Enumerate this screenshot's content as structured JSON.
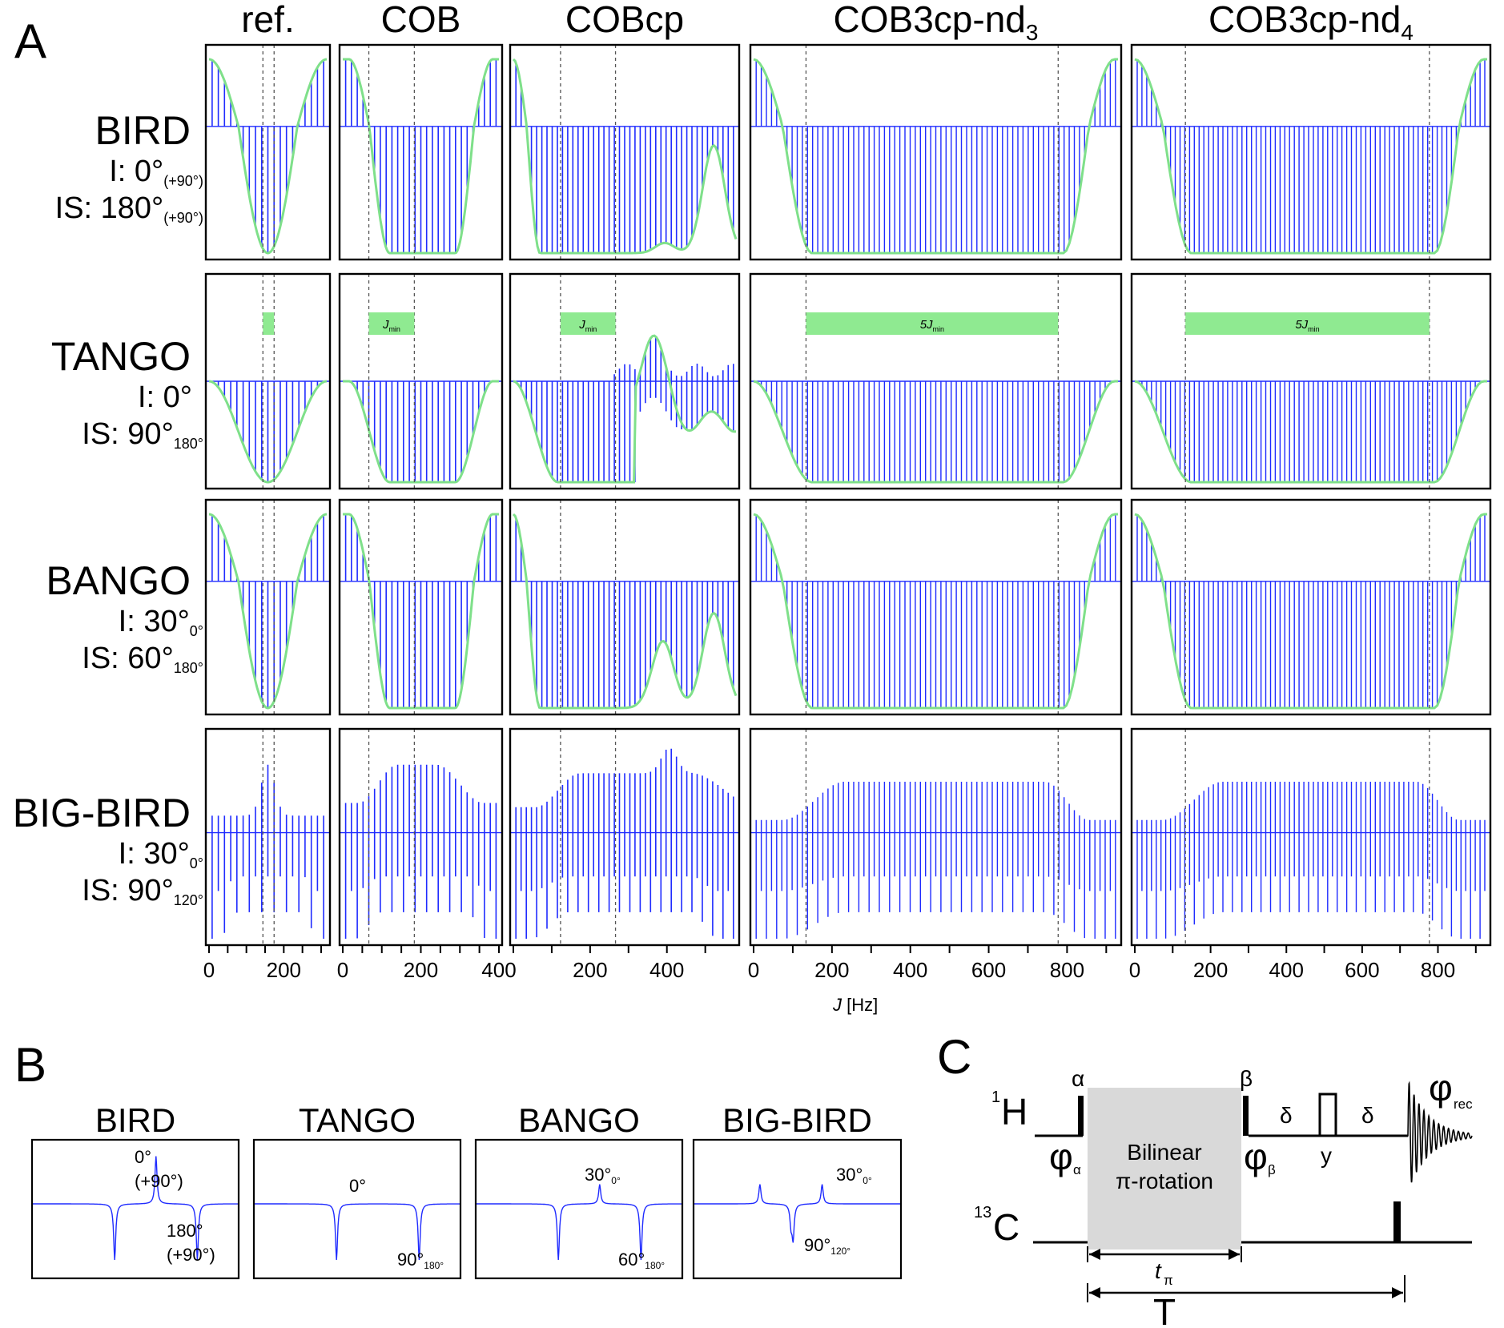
{
  "panel_labels": {
    "a": "A",
    "b": "B",
    "c": "C"
  },
  "colors": {
    "stick": "#1f2bff",
    "envelope": "#7fe08a",
    "bar": "#8fea91",
    "dash": "#555555",
    "box": "#d9d9d9"
  },
  "panel_a": {
    "columns": [
      {
        "title": "ref.",
        "sub": ""
      },
      {
        "title": "COB",
        "sub": ""
      },
      {
        "title": "COBcp",
        "sub": ""
      },
      {
        "title": "COB3cp-nd",
        "sub": "3"
      },
      {
        "title": "COB3cp-nd",
        "sub": "4"
      }
    ],
    "rows": [
      {
        "title": "BIRD",
        "l1": {
          "main": "I: 0°",
          "sub": "(+90°)"
        },
        "l2": {
          "main": "IS: 180°",
          "sub": "(+90°)"
        }
      },
      {
        "title": "TANGO",
        "l1": {
          "main": "I: 0°",
          "sub": ""
        },
        "l2": {
          "main": "IS: 90°",
          "sub": "180°"
        }
      },
      {
        "title": "BANGO",
        "l1": {
          "main": "I: 30°",
          "sub": "0°"
        },
        "l2": {
          "main": "IS: 60°",
          "sub": "180°"
        }
      },
      {
        "title": "BIG-BIRD",
        "l1": {
          "main": "I: 30°",
          "sub": "0°"
        },
        "l2": {
          "main": "IS: 90°",
          "sub": "120°"
        }
      }
    ],
    "tango_bars": [
      {
        "label": ""
      },
      {
        "label": "J",
        "sub": "min"
      },
      {
        "label": "J",
        "sub": "min"
      },
      {
        "label": "5J",
        "sub": "min"
      },
      {
        "label": "5J",
        "sub": "min"
      }
    ],
    "x_ticks": [
      [
        "0",
        "200"
      ],
      [
        "0",
        "200",
        "400"
      ],
      [
        "200",
        "400"
      ],
      [
        "0",
        "200",
        "400",
        "600",
        "800"
      ],
      [
        "0",
        "200",
        "400",
        "600",
        "800"
      ]
    ],
    "x_label": "J [Hz]"
  },
  "panel_b": {
    "titles": [
      "BIRD",
      "TANGO",
      "BANGO",
      "BIG-BIRD"
    ],
    "labels": [
      {
        "top": "0°",
        "top2": "(+90°)",
        "bot": "180°",
        "bot2": "(+90°)"
      },
      {
        "top": "0°",
        "bot": "90°",
        "bot_sub": "180°"
      },
      {
        "top": "30°",
        "top_sub": "0°",
        "bot": "60°",
        "bot_sub": "180°"
      },
      {
        "top": "30°",
        "top_sub": "0°",
        "bot": "90°",
        "bot_sub": "120°"
      }
    ]
  },
  "panel_c": {
    "h_sup": "1",
    "h": "H",
    "c_sup": "13",
    "c": "C",
    "alpha": "α",
    "beta": "β",
    "phi_alpha": "φ",
    "phi_alpha_sub": "α",
    "phi_beta": "φ",
    "phi_beta_sub": "β",
    "delta": "δ",
    "y": "y",
    "phi_rec": "φ",
    "phi_rec_sub": "rec",
    "box_l1": "Bilinear",
    "box_l2": "π-rotation",
    "t_pi": "t",
    "t_pi_sub": "π",
    "T": "T"
  }
}
